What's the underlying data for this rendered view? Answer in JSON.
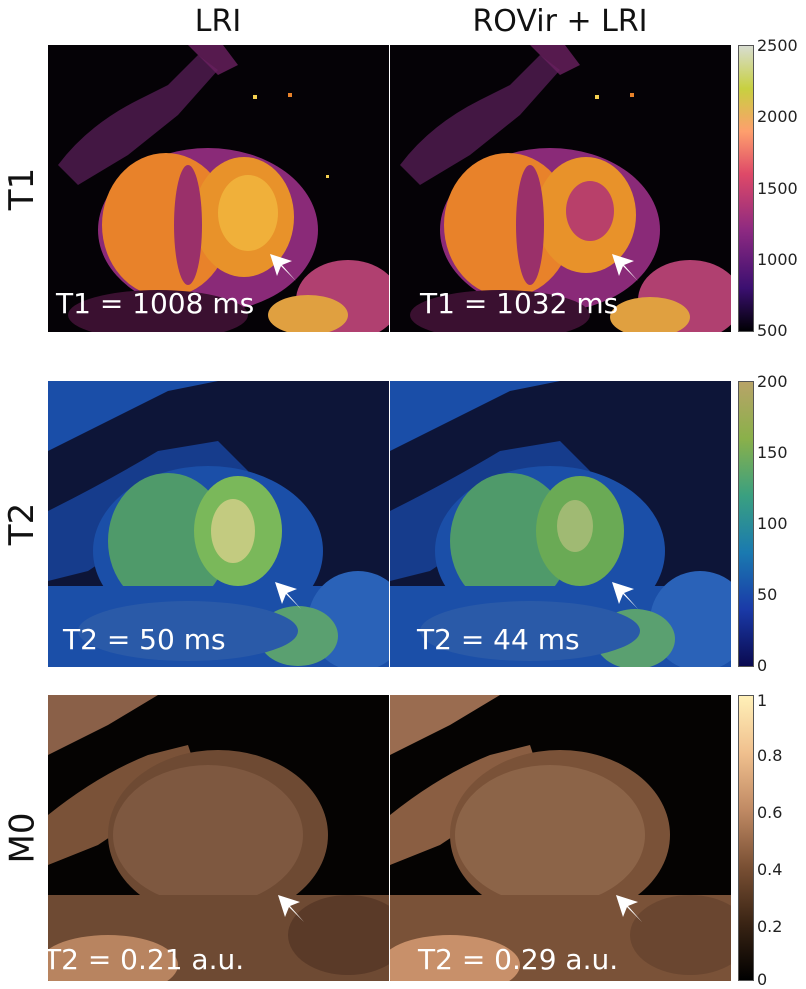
{
  "columns": [
    "LRI",
    "ROVir + LRI"
  ],
  "rows": [
    {
      "label": "T1",
      "colormap": "magma-like",
      "colorbar": {
        "ticks": [
          "2500",
          "2000",
          "1500",
          "1000",
          "500"
        ],
        "range": [
          500,
          2500
        ]
      },
      "annotations": [
        "T1 = 1008 ms",
        "T1 = 1032 ms"
      ]
    },
    {
      "label": "T2",
      "colormap": "navy-blue-green-khaki",
      "colorbar": {
        "ticks": [
          "200",
          "150",
          "100",
          "50",
          "0"
        ],
        "range": [
          0,
          200
        ]
      },
      "annotations": [
        "T2 = 50 ms",
        "T2 = 44 ms"
      ]
    },
    {
      "label": "M0",
      "colormap": "copper",
      "colorbar": {
        "ticks": [
          "1",
          "0.8",
          "0.6",
          "0.4",
          "0.2",
          "0"
        ],
        "range": [
          0,
          1
        ]
      },
      "annotations": [
        "T2 = 0.21 a.u.",
        "T2 = 0.29 a.u."
      ]
    }
  ],
  "colors": {
    "t1_bg": "#050206",
    "t1_mid": "#8a2a78",
    "t1_high": "#e8822a",
    "t1_top": "#f5d050",
    "t2_bg": "#0d1538",
    "t2_mid": "#1b4fa8",
    "t2_high": "#6fae4a",
    "t2_top": "#d6d08a",
    "m0_bg": "#050302",
    "m0_mid": "#6e4a33",
    "m0_high": "#b88460",
    "m0_top": "#f3cc9a",
    "arrow": "#ffffff"
  }
}
